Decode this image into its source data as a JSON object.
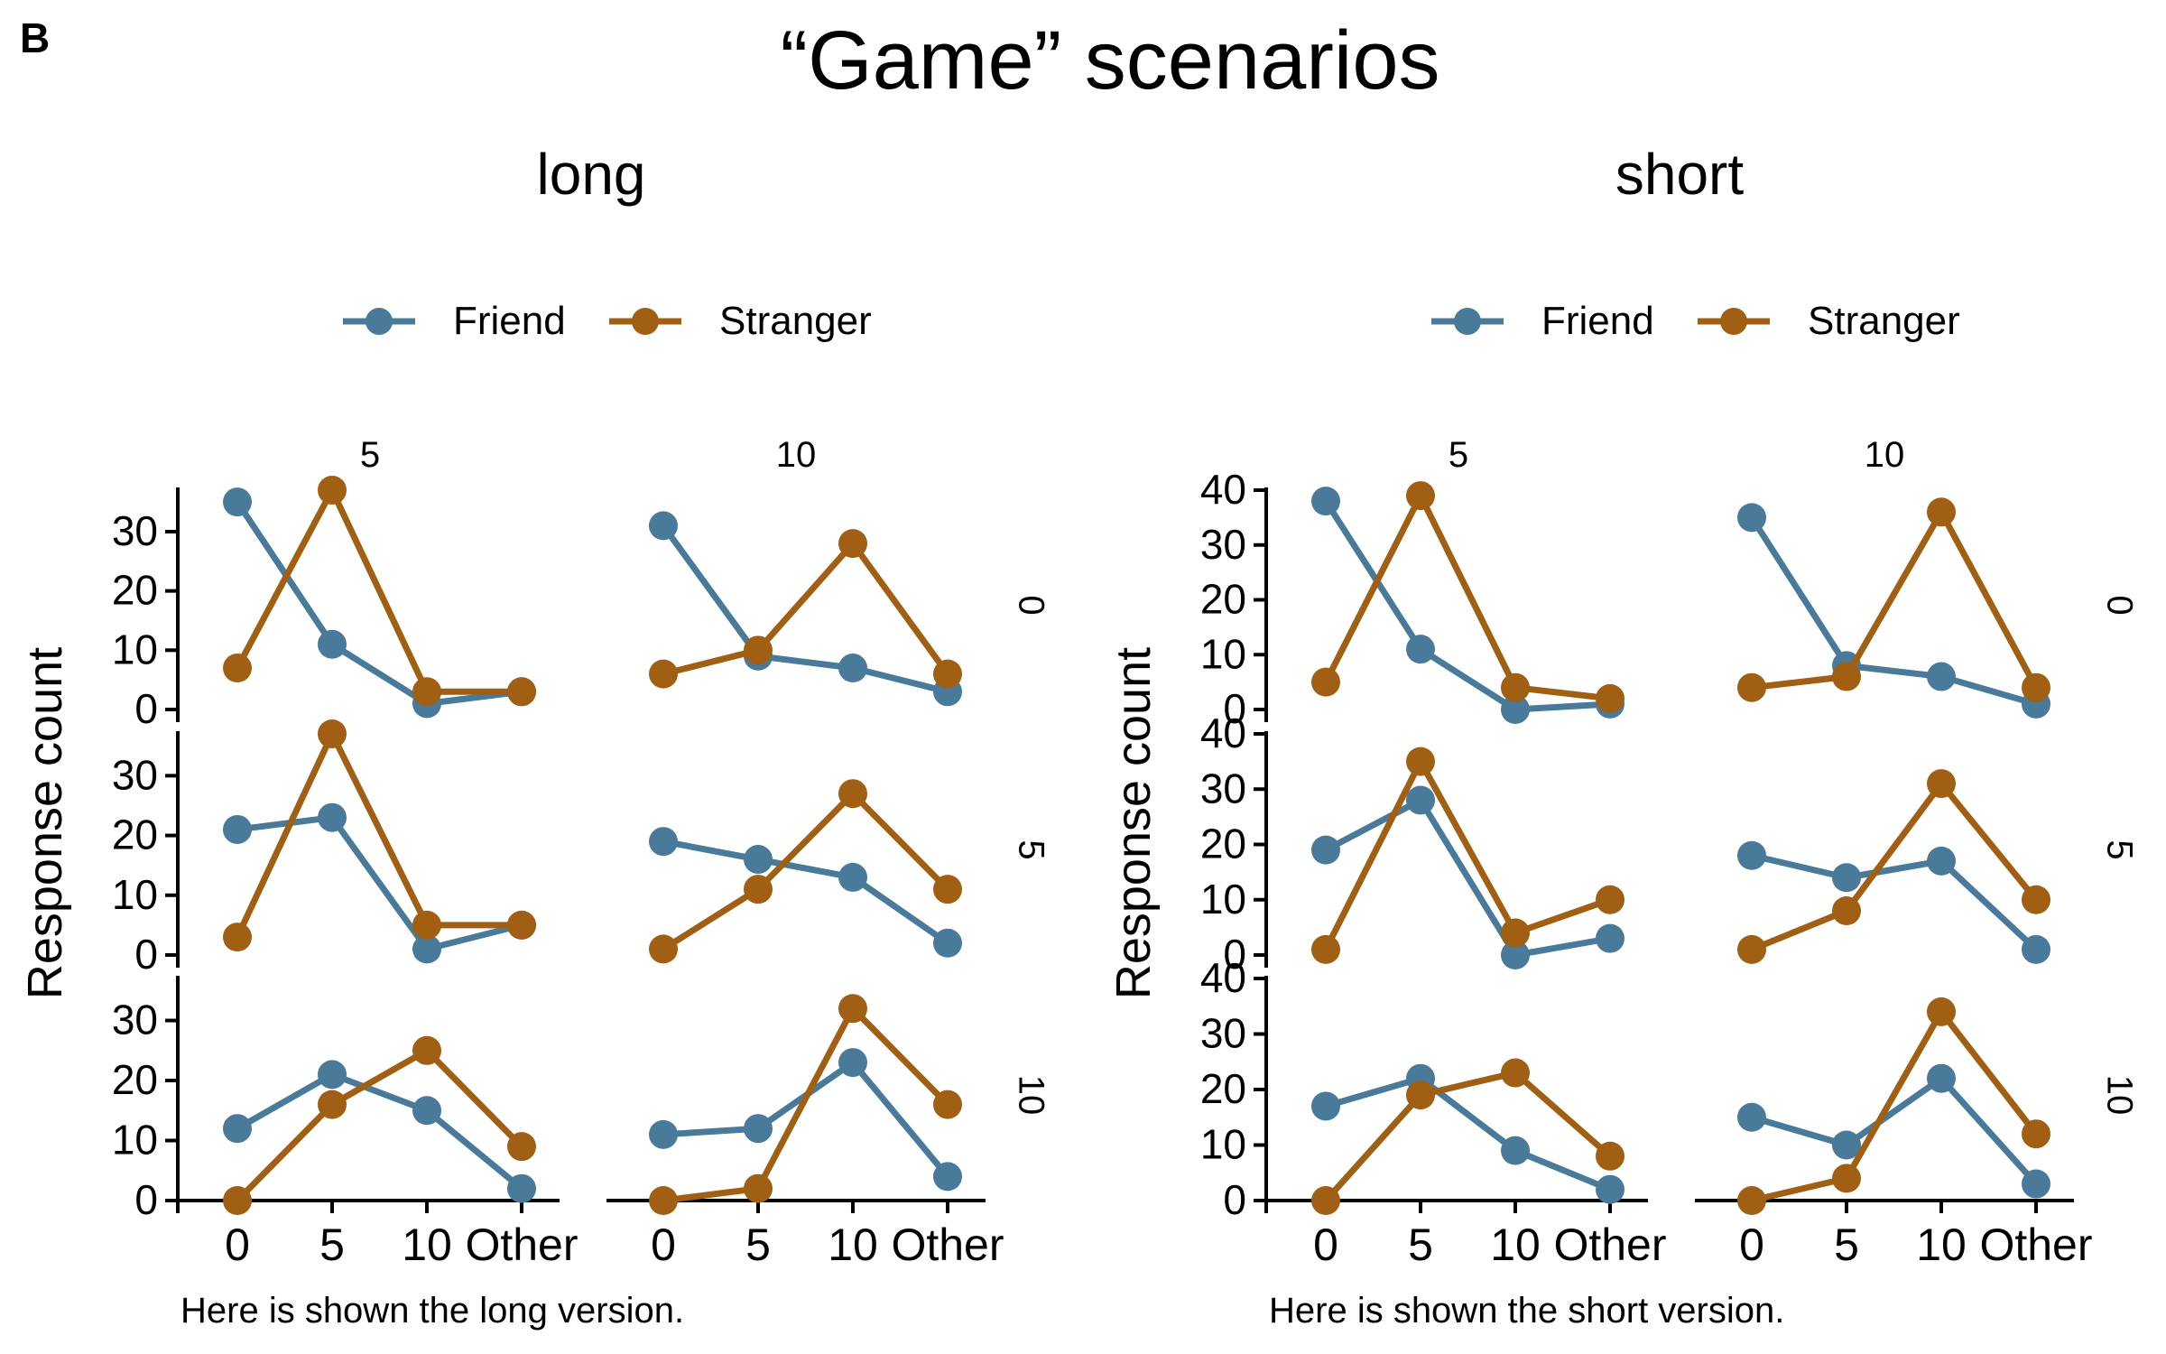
{
  "panel_letter": "B",
  "title": "“Game” scenarios",
  "colors": {
    "Friend": "#4a7a99",
    "Stranger": "#a05f12"
  },
  "chart_data": [
    {
      "type": "line",
      "title": "long",
      "ylabel": "Response count",
      "caption": "Here is shown the long version.",
      "legend": [
        "Friend",
        "Stranger"
      ],
      "legend_position": "top",
      "categories": [
        "0",
        "5",
        "10",
        "Other"
      ],
      "yticks": [
        0,
        10,
        20,
        30
      ],
      "ylim": [
        0,
        37
      ],
      "col_facets": [
        "5",
        "10"
      ],
      "row_facets": [
        "0",
        "5",
        "10"
      ],
      "panels": [
        {
          "row": "0",
          "col": "5",
          "series": [
            {
              "name": "Friend",
              "values": [
                35,
                11,
                1,
                3
              ]
            },
            {
              "name": "Stranger",
              "values": [
                7,
                37,
                3,
                3
              ]
            }
          ]
        },
        {
          "row": "0",
          "col": "10",
          "series": [
            {
              "name": "Friend",
              "values": [
                31,
                9,
                7,
                3
              ]
            },
            {
              "name": "Stranger",
              "values": [
                6,
                10,
                28,
                6
              ]
            }
          ]
        },
        {
          "row": "5",
          "col": "5",
          "series": [
            {
              "name": "Friend",
              "values": [
                21,
                23,
                1,
                5
              ]
            },
            {
              "name": "Stranger",
              "values": [
                3,
                37,
                5,
                5
              ]
            }
          ]
        },
        {
          "row": "5",
          "col": "10",
          "series": [
            {
              "name": "Friend",
              "values": [
                19,
                16,
                13,
                2
              ]
            },
            {
              "name": "Stranger",
              "values": [
                1,
                11,
                27,
                11
              ]
            }
          ]
        },
        {
          "row": "10",
          "col": "5",
          "series": [
            {
              "name": "Friend",
              "values": [
                12,
                21,
                15,
                2
              ]
            },
            {
              "name": "Stranger",
              "values": [
                0,
                16,
                25,
                9
              ]
            }
          ]
        },
        {
          "row": "10",
          "col": "10",
          "series": [
            {
              "name": "Friend",
              "values": [
                11,
                12,
                23,
                4
              ]
            },
            {
              "name": "Stranger",
              "values": [
                0,
                2,
                32,
                16
              ]
            }
          ]
        }
      ]
    },
    {
      "type": "line",
      "title": "short",
      "ylabel": "Response count",
      "caption": "Here is shown the short version.",
      "legend": [
        "Friend",
        "Stranger"
      ],
      "legend_position": "top",
      "categories": [
        "0",
        "5",
        "10",
        "Other"
      ],
      "yticks": [
        0,
        10,
        20,
        30,
        40
      ],
      "ylim": [
        0,
        40
      ],
      "col_facets": [
        "5",
        "10"
      ],
      "row_facets": [
        "0",
        "5",
        "10"
      ],
      "panels": [
        {
          "row": "0",
          "col": "5",
          "series": [
            {
              "name": "Friend",
              "values": [
                38,
                11,
                0,
                1
              ]
            },
            {
              "name": "Stranger",
              "values": [
                5,
                39,
                4,
                2
              ]
            }
          ]
        },
        {
          "row": "0",
          "col": "10",
          "series": [
            {
              "name": "Friend",
              "values": [
                35,
                8,
                6,
                1
              ]
            },
            {
              "name": "Stranger",
              "values": [
                4,
                6,
                36,
                4
              ]
            }
          ]
        },
        {
          "row": "5",
          "col": "5",
          "series": [
            {
              "name": "Friend",
              "values": [
                19,
                28,
                0,
                3
              ]
            },
            {
              "name": "Stranger",
              "values": [
                1,
                35,
                4,
                10
              ]
            }
          ]
        },
        {
          "row": "5",
          "col": "10",
          "series": [
            {
              "name": "Friend",
              "values": [
                18,
                14,
                17,
                1
              ]
            },
            {
              "name": "Stranger",
              "values": [
                1,
                8,
                31,
                10
              ]
            }
          ]
        },
        {
          "row": "10",
          "col": "5",
          "series": [
            {
              "name": "Friend",
              "values": [
                17,
                22,
                9,
                2
              ]
            },
            {
              "name": "Stranger",
              "values": [
                0,
                19,
                23,
                8
              ]
            }
          ]
        },
        {
          "row": "10",
          "col": "10",
          "series": [
            {
              "name": "Friend",
              "values": [
                15,
                10,
                22,
                3
              ]
            },
            {
              "name": "Stranger",
              "values": [
                0,
                4,
                34,
                12
              ]
            }
          ]
        }
      ]
    }
  ]
}
